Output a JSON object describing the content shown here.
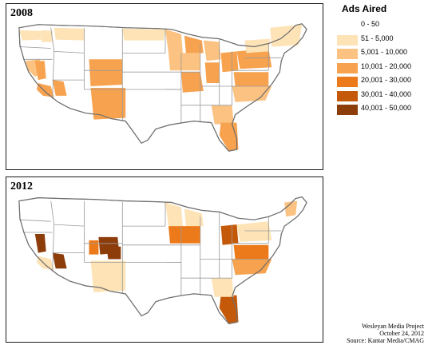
{
  "legend": {
    "title": "Ads Aired",
    "classes": [
      {
        "label": "0 - 50",
        "color": "#ffffff"
      },
      {
        "label": "51 - 5,000",
        "color": "#fde3b6"
      },
      {
        "label": "5,001 - 10,000",
        "color": "#fbc281"
      },
      {
        "label": "10,001 - 20,000",
        "color": "#f7a24f"
      },
      {
        "label": "20,001 - 30,000",
        "color": "#ec7a1a"
      },
      {
        "label": "30,001 - 40,000",
        "color": "#c45a09"
      },
      {
        "label": "40,001 - 50,000",
        "color": "#8c3d0a"
      }
    ]
  },
  "maps": [
    {
      "year": "2008",
      "regions": [
        {
          "name": "Northern Washington",
          "class": 1
        },
        {
          "name": "Eastern Washington",
          "class": 1
        },
        {
          "name": "Northern Montana",
          "class": 1
        },
        {
          "name": "Northern California",
          "class": 2
        },
        {
          "name": "Reno",
          "class": 3
        },
        {
          "name": "Los Angeles",
          "class": 3
        },
        {
          "name": "Las Vegas",
          "class": 3
        },
        {
          "name": "Colorado",
          "class": 3
        },
        {
          "name": "New Mexico",
          "class": 3
        },
        {
          "name": "Minnesota",
          "class": 2
        },
        {
          "name": "North Dakota",
          "class": 1
        },
        {
          "name": "Iowa",
          "class": 2
        },
        {
          "name": "Missouri",
          "class": 3
        },
        {
          "name": "Wisconsin",
          "class": 3
        },
        {
          "name": "Michigan",
          "class": 2
        },
        {
          "name": "Ohio",
          "class": 3
        },
        {
          "name": "Indiana",
          "class": 3
        },
        {
          "name": "Pennsylvania",
          "class": 3
        },
        {
          "name": "Virginia",
          "class": 3
        },
        {
          "name": "North Carolina",
          "class": 2
        },
        {
          "name": "Georgia",
          "class": 2
        },
        {
          "name": "Florida",
          "class": 3
        },
        {
          "name": "New England",
          "class": 1
        },
        {
          "name": "Upstate New York",
          "class": 1
        }
      ]
    },
    {
      "year": "2012",
      "regions": [
        {
          "name": "Reno",
          "class": 6
        },
        {
          "name": "Las Vegas",
          "class": 6
        },
        {
          "name": "Denver",
          "class": 6
        },
        {
          "name": "Colorado Springs",
          "class": 6
        },
        {
          "name": "Grand Junction",
          "class": 4
        },
        {
          "name": "Wisconsin",
          "class": 1
        },
        {
          "name": "Minnesota",
          "class": 1
        },
        {
          "name": "Iowa",
          "class": 4
        },
        {
          "name": "Ohio",
          "class": 5
        },
        {
          "name": "Virginia",
          "class": 4
        },
        {
          "name": "North Carolina",
          "class": 3
        },
        {
          "name": "Florida",
          "class": 5
        },
        {
          "name": "New Hampshire",
          "class": 2
        },
        {
          "name": "Pennsylvania",
          "class": 1
        },
        {
          "name": "New Mexico",
          "class": 1
        },
        {
          "name": "Los Angeles",
          "class": 1
        },
        {
          "name": "Georgia",
          "class": 1
        }
      ]
    }
  ],
  "credits": {
    "line1": "Wesleyan Media Project",
    "line2": "October 24, 2012",
    "line3": "Source: Kantar Media/CMAG"
  }
}
